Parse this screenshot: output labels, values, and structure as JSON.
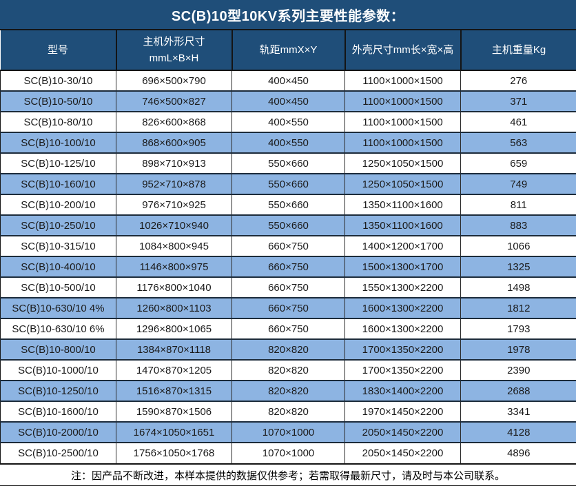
{
  "title": "SC(B)10型10KV系列主要性能参数：",
  "note": "注：因产品不断改进，本样本提供的数据仅供参考；若需取得最新尺寸，请及时与本公司联系。",
  "table": {
    "columns": [
      "型号",
      "主机外形尺寸\nmmL×B×H",
      "轨距mmX×Y",
      "外壳尺寸mm长×宽×高",
      "主机重量Kg"
    ],
    "rows": [
      [
        "SC(B)10-30/10",
        "696×500×790",
        "400×450",
        "1100×1000×1500",
        "276"
      ],
      [
        "SC(B)10-50/10",
        "746×500×827",
        "400×450",
        "1100×1000×1500",
        "371"
      ],
      [
        "SC(B)10-80/10",
        "826×600×868",
        "400×550",
        "1100×1000×1500",
        "461"
      ],
      [
        "SC(B)10-100/10",
        "868×600×905",
        "400×550",
        "1100×1000×1500",
        "563"
      ],
      [
        "SC(B)10-125/10",
        "898×710×913",
        "550×660",
        "1250×1050×1500",
        "659"
      ],
      [
        "SC(B)10-160/10",
        "952×710×878",
        "550×660",
        "1250×1050×1500",
        "749"
      ],
      [
        "SC(B)10-200/10",
        "976×710×925",
        "550×660",
        "1350×1100×1600",
        "811"
      ],
      [
        "SC(B)10-250/10",
        "1026×710×940",
        "550×660",
        "1350×1100×1600",
        "883"
      ],
      [
        "SC(B)10-315/10",
        "1084×800×945",
        "660×750",
        "1400×1200×1700",
        "1066"
      ],
      [
        "SC(B)10-400/10",
        "1146×800×975",
        "660×750",
        "1500×1300×1700",
        "1325"
      ],
      [
        "SC(B)10-500/10",
        "1176×800×1040",
        "660×750",
        "1550×1300×2200",
        "1498"
      ],
      [
        "SC(B)10-630/10 4%",
        "1260×800×1103",
        "660×750",
        "1600×1300×2200",
        "1812"
      ],
      [
        "SC(B)10-630/10 6%",
        "1296×800×1065",
        "660×750",
        "1600×1300×2200",
        "1793"
      ],
      [
        "SC(B)10-800/10",
        "1384×870×1118",
        "820×820",
        "1700×1350×2200",
        "1978"
      ],
      [
        "SC(B)10-1000/10",
        "1470×870×1205",
        "820×820",
        "1700×1350×2200",
        "2390"
      ],
      [
        "SC(B)10-1250/10",
        "1516×870×1315",
        "820×820",
        "1830×1400×2200",
        "2688"
      ],
      [
        "SC(B)10-1600/10",
        "1590×870×1506",
        "820×820",
        "1970×1450×2200",
        "3341"
      ],
      [
        "SC(B)10-2000/10",
        "1674×1050×1651",
        "1070×1000",
        "2050×1450×2200",
        "4128"
      ],
      [
        "SC(B)10-2500/10",
        "1756×1050×1768",
        "1070×1000",
        "2050×1450×2200",
        "4896"
      ]
    ]
  },
  "colors": {
    "header_bg": "#1F4E79",
    "stripe_bg": "#8DB4E2",
    "row_bg": "#FFFFFF",
    "border_dark": "#141414",
    "header_text": "#FFFFFF",
    "text_dark": "#1A1A1A"
  }
}
